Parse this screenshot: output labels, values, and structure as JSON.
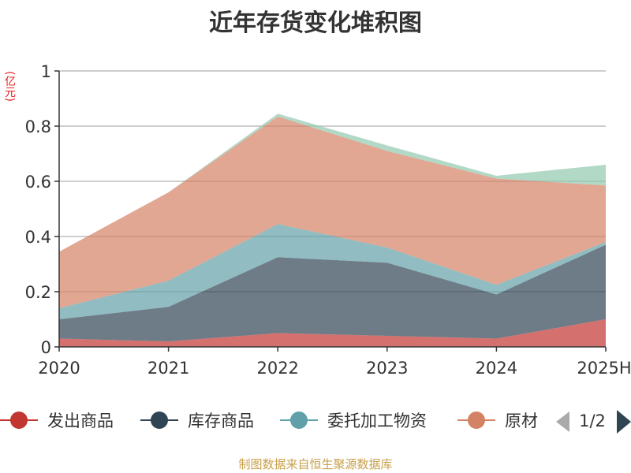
{
  "chart_data": {
    "type": "area",
    "title": "近年存货变化堆积图",
    "unit_label": "(亿元)",
    "x": [
      "2020",
      "2021",
      "2022",
      "2023",
      "2024",
      "2025H"
    ],
    "ylim": [
      0,
      1
    ],
    "yticks": [
      "0",
      "0.2",
      "0.4",
      "0.6",
      "0.8",
      "1"
    ],
    "grid": true,
    "stacked": true,
    "series": [
      {
        "name": "发出商品",
        "color": "#c23531",
        "values": [
          0.03,
          0.02,
          0.05,
          0.04,
          0.03,
          0.1
        ]
      },
      {
        "name": "库存商品",
        "color": "#2f4554",
        "values": [
          0.07,
          0.125,
          0.275,
          0.265,
          0.16,
          0.27
        ]
      },
      {
        "name": "委托加工物资",
        "color": "#61a0a8",
        "values": [
          0.04,
          0.095,
          0.12,
          0.055,
          0.035,
          0.01
        ]
      },
      {
        "name": "原材料",
        "color": "#d48265",
        "values": [
          0.205,
          0.32,
          0.39,
          0.35,
          0.385,
          0.205
        ]
      },
      {
        "name": "",
        "color": "#91c7ae",
        "values": [
          0.0,
          0.0,
          0.01,
          0.02,
          0.01,
          0.075
        ]
      }
    ],
    "legend": {
      "position": "bottom",
      "visible_items": [
        "发出商品",
        "库存商品",
        "委托加工物资",
        "原材"
      ],
      "page_indicator": "1/2"
    },
    "source": "制图数据来自恒生聚源数据库"
  }
}
